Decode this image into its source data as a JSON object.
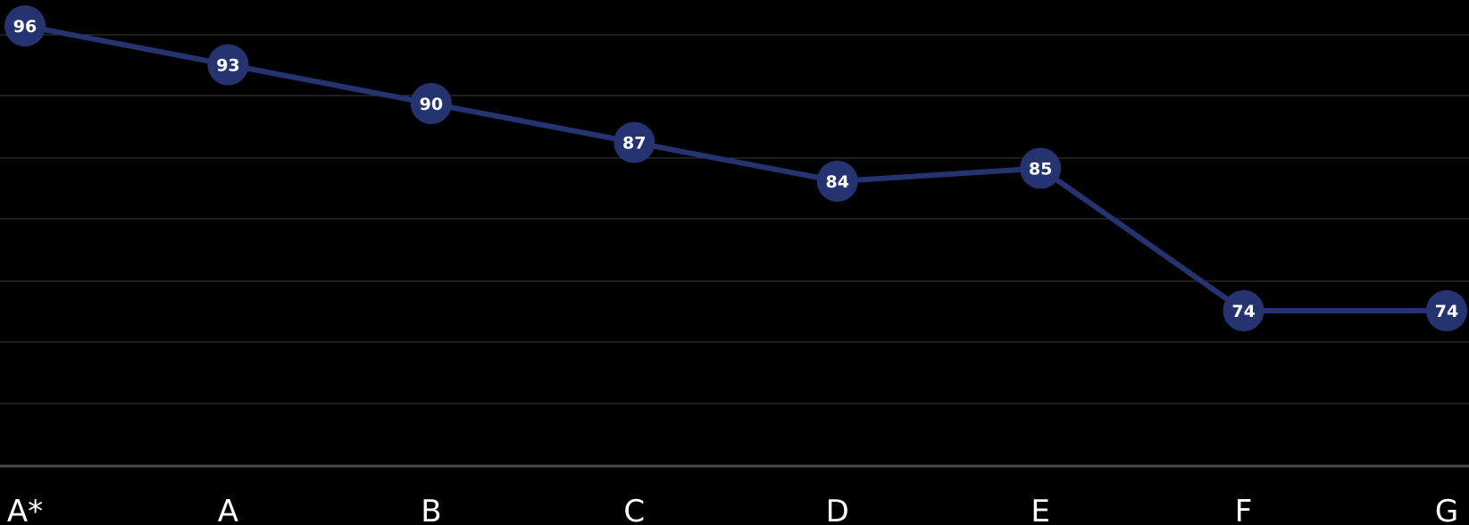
{
  "chart_data": {
    "type": "line",
    "categories": [
      "A*",
      "A",
      "B",
      "C",
      "D",
      "E",
      "F",
      "G"
    ],
    "values": [
      96,
      93,
      90,
      87,
      84,
      85,
      74,
      74
    ],
    "ylim": [
      62,
      98
    ],
    "grid": true,
    "legend": "none",
    "colors": {
      "background": "#000000",
      "series": "#253470",
      "marker": "#253470",
      "label": "#ffffff"
    }
  }
}
